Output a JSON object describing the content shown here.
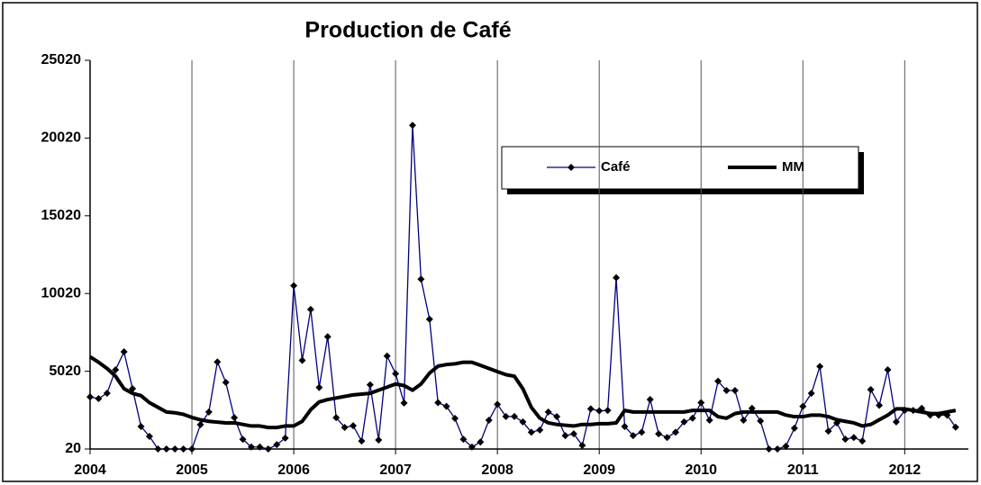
{
  "chart_data": {
    "type": "line",
    "title": "Production de Café",
    "categories": [
      "2004",
      null,
      null,
      null,
      null,
      null,
      null,
      null,
      null,
      null,
      null,
      null,
      "2005",
      null,
      null,
      null,
      null,
      null,
      null,
      null,
      null,
      null,
      null,
      null,
      "2006",
      null,
      null,
      null,
      null,
      null,
      null,
      null,
      null,
      null,
      null,
      null,
      "2007",
      null,
      null,
      null,
      null,
      null,
      null,
      null,
      null,
      null,
      null,
      null,
      "2008",
      null,
      null,
      null,
      null,
      null,
      null,
      null,
      null,
      null,
      null,
      null,
      "2009",
      null,
      null,
      null,
      null,
      null,
      null,
      null,
      null,
      null,
      null,
      null,
      "2010",
      null,
      null,
      null,
      null,
      null,
      null,
      null,
      null,
      null,
      null,
      null,
      "2011",
      null,
      null,
      null,
      null,
      null,
      null,
      null,
      null,
      null,
      null,
      null,
      "2012",
      null,
      null,
      null,
      null,
      null,
      null
    ],
    "series": [
      {
        "name": "Café",
        "color": "#000080",
        "values": [
          3370,
          3260,
          3610,
          5110,
          6270,
          3900,
          1470,
          830,
          20,
          20,
          20,
          20,
          20,
          1580,
          2400,
          5620,
          4300,
          2040,
          640,
          150,
          150,
          20,
          300,
          720,
          10520,
          5720,
          9000,
          3980,
          7240,
          2040,
          1410,
          1520,
          530,
          4150,
          600,
          6000,
          4870,
          2980,
          20840,
          10940,
          8370,
          3000,
          2760,
          1990,
          640,
          150,
          470,
          1870,
          2890,
          2110,
          2110,
          1760,
          1100,
          1240,
          2400,
          2100,
          880,
          1000,
          250,
          2600,
          2470,
          2500,
          11040,
          1470,
          880,
          1100,
          3200,
          1000,
          760,
          1100,
          1760,
          2000,
          3000,
          1870,
          4380,
          3780,
          3780,
          1870,
          2640,
          1820,
          20,
          20,
          200,
          1360,
          2760,
          3600,
          5330,
          1170,
          1700,
          650,
          760,
          530,
          3840,
          2830,
          5110,
          1760,
          2500,
          2500,
          2640,
          2200,
          2200,
          2200,
          1420
        ]
      },
      {
        "name": "MM",
        "color": "#000000",
        "values": [
          5950,
          5600,
          5200,
          4700,
          3900,
          3600,
          3450,
          3000,
          2700,
          2400,
          2350,
          2250,
          2050,
          1900,
          1800,
          1750,
          1700,
          1700,
          1600,
          1500,
          1500,
          1400,
          1400,
          1500,
          1500,
          1800,
          2550,
          3050,
          3200,
          3300,
          3400,
          3500,
          3550,
          3600,
          3800,
          4000,
          4200,
          4100,
          3800,
          4200,
          4900,
          5350,
          5450,
          5500,
          5600,
          5600,
          5400,
          5200,
          5000,
          4800,
          4700,
          3900,
          2700,
          2000,
          1700,
          1600,
          1550,
          1500,
          1600,
          1600,
          1650,
          1650,
          1700,
          2500,
          2400,
          2400,
          2400,
          2400,
          2400,
          2400,
          2400,
          2500,
          2500,
          2500,
          2100,
          2000,
          2300,
          2400,
          2400,
          2400,
          2400,
          2400,
          2200,
          2100,
          2100,
          2200,
          2200,
          2100,
          1900,
          1800,
          1700,
          1500,
          1600,
          1900,
          2200,
          2600,
          2600,
          2500,
          2400,
          2300,
          2300,
          2400,
          2500
        ]
      }
    ],
    "ylim": [
      20,
      25020
    ],
    "yticks": [
      20,
      5020,
      10020,
      15020,
      20020,
      25020
    ],
    "xgrid": true
  }
}
